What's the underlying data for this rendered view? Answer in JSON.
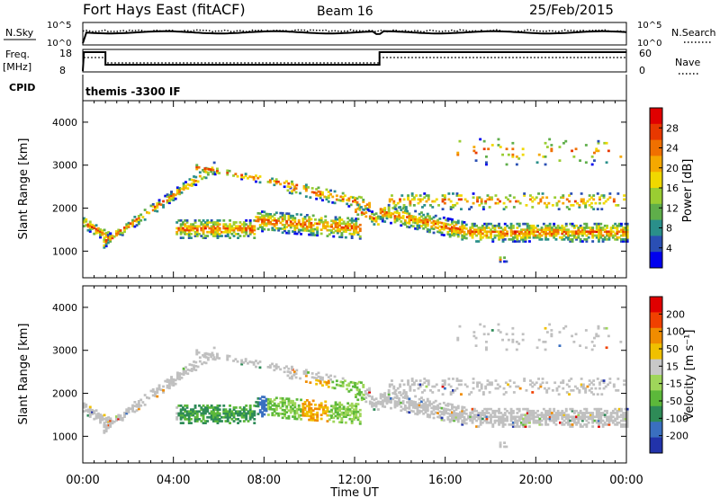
{
  "header": {
    "station": "Fort Hays East (fitACF)",
    "beam": "Beam 16",
    "date": "25/Feb/2015"
  },
  "status_panel": {
    "nsky_label": "N.Sky",
    "nsearch_label": "N.Search",
    "noise_ticks": [
      "10^5",
      "10^0"
    ],
    "noise_ticks_right": [
      "10^5",
      "10^0"
    ],
    "freq_label": "Freq.",
    "freq_unit": "[MHz]",
    "freq_ticks": [
      "18",
      "8"
    ],
    "nave_label": "Nave",
    "nave_ticks": [
      "60",
      "0"
    ],
    "cpid_label": "CPID",
    "cpid_value": "themis -3300 IF"
  },
  "chart_data": [
    {
      "type": "heatmap",
      "name": "power",
      "ylabel": "Slant Range [km]",
      "yticks": [
        1000,
        2000,
        3000,
        4000
      ],
      "ylim": [
        380,
        4500
      ],
      "xlim_hours": [
        0,
        24
      ],
      "colorbar_label": "Power [dB]",
      "colorbar_ticks": [
        4,
        8,
        12,
        16,
        20,
        24,
        28
      ],
      "colorbar_colors": [
        "#0000ee",
        "#2a4fb4",
        "#2a8f8a",
        "#5fae4a",
        "#9acd32",
        "#f0d800",
        "#f5a800",
        "#f07000",
        "#e83800",
        "#e00000"
      ],
      "colorbar_range": [
        0,
        32
      ]
    },
    {
      "type": "heatmap",
      "name": "velocity",
      "ylabel": "Slant Range [km]",
      "yticks": [
        1000,
        2000,
        3000,
        4000
      ],
      "ylim": [
        380,
        4500
      ],
      "xlim_hours": [
        0,
        24
      ],
      "colorbar_label": "Velocity [m s⁻¹]",
      "colorbar_ticks": [
        "200",
        "100",
        "50",
        "15",
        "-15",
        "-50",
        "-100",
        "-200"
      ],
      "colorbar_colors": [
        "#2233aa",
        "#3a6fc0",
        "#2e8b57",
        "#5cb83a",
        "#9fd65a",
        "#c8c8c8",
        "#f0c000",
        "#f08c00",
        "#f04000",
        "#e00000"
      ],
      "ground_scatter_color": "#c0c0c0"
    }
  ],
  "xaxis": {
    "ticks": [
      "00:00",
      "04:00",
      "08:00",
      "12:00",
      "16:00",
      "20:00",
      "00:00"
    ],
    "label": "Time UT"
  }
}
